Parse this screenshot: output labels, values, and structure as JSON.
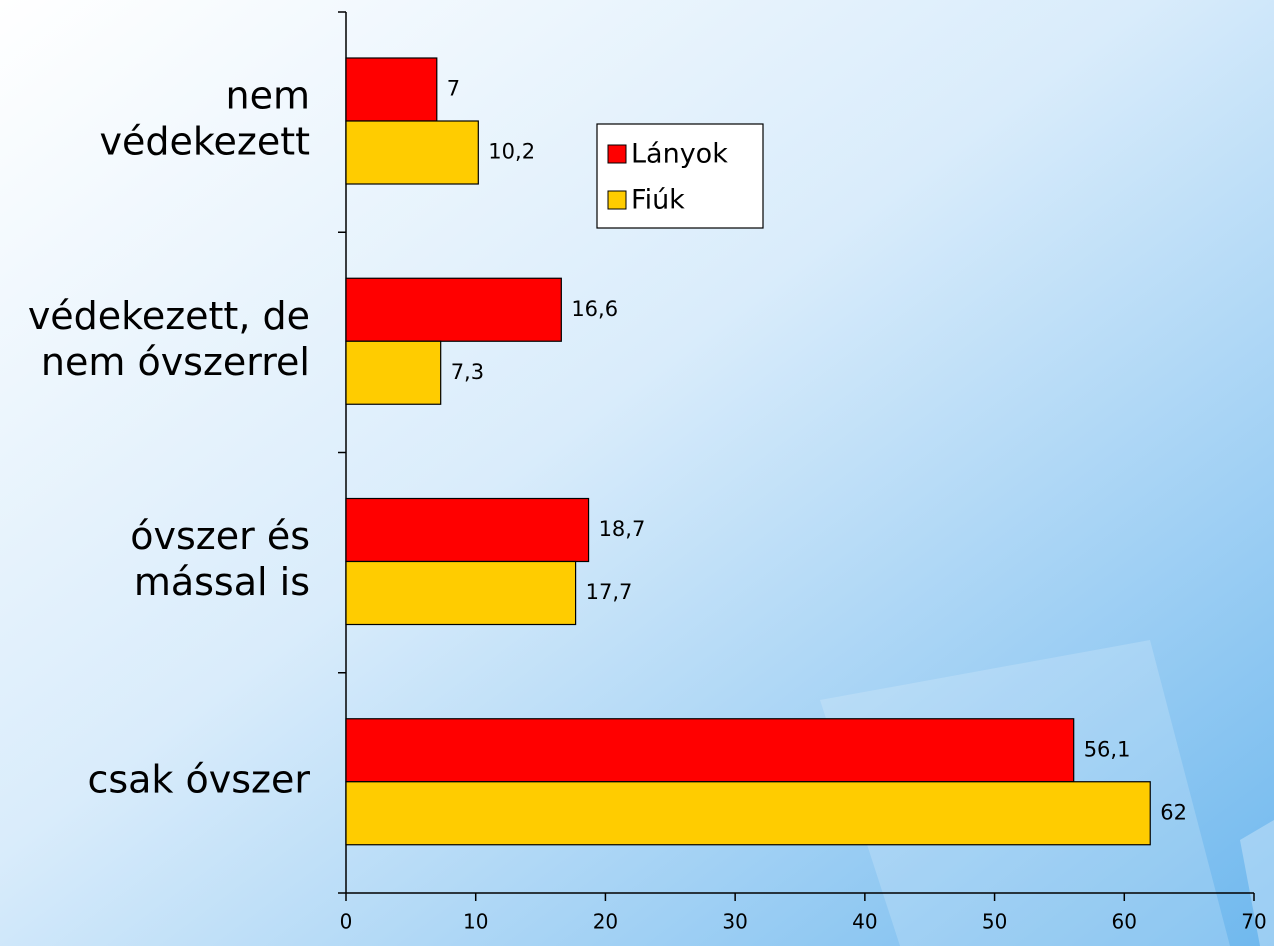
{
  "chart_data": {
    "type": "hbar",
    "categories": [
      [
        "nem",
        "védekezett"
      ],
      [
        "védekezett, de",
        "nem óvszerrel"
      ],
      [
        "óvszer és",
        "mással is"
      ],
      [
        "csak óvszer"
      ]
    ],
    "series": [
      {
        "name": "Lányok",
        "color": "#ff0000",
        "values": [
          7,
          16.6,
          18.7,
          56.1
        ],
        "value_labels": [
          "7",
          "16,6",
          "18,7",
          "56,1"
        ]
      },
      {
        "name": "Fiúk",
        "color": "#ffcc00",
        "values": [
          10.2,
          7.3,
          17.7,
          62
        ],
        "value_labels": [
          "10,2",
          "7,3",
          "17,7",
          "62"
        ]
      }
    ],
    "xlim": [
      0,
      70
    ],
    "xticks": [
      0,
      10,
      20,
      30,
      40,
      50,
      60,
      70
    ],
    "legend": "upper center"
  }
}
